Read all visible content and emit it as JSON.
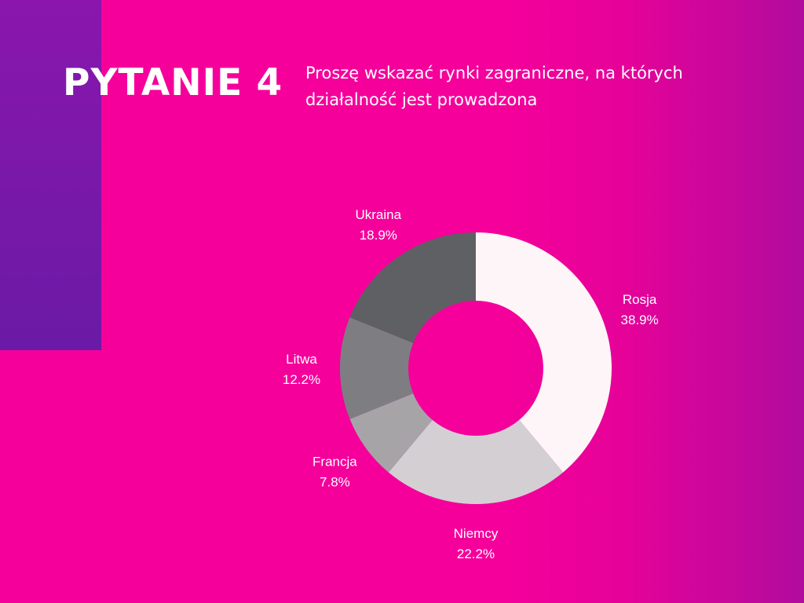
{
  "header": {
    "title": "PYTANIE 4",
    "question": "Proszę wskazać rynki zagraniczne, na których działalność jest prowadzona"
  },
  "chart_data": {
    "type": "pie",
    "donut": true,
    "categories": [
      "Rosja",
      "Niemcy",
      "Francja",
      "Litwa",
      "Ukraina"
    ],
    "values": [
      38.9,
      22.2,
      7.8,
      12.2,
      18.9
    ],
    "value_labels": [
      "38.9%",
      "22.2%",
      "7.8%",
      "12.2%",
      "18.9%"
    ],
    "colors": [
      "#fdf5f7",
      "#d4cfd3",
      "#a7a4a8",
      "#7e7e82",
      "#5f6064"
    ],
    "title": "",
    "legend": "none"
  },
  "colors": {
    "background": "#f5009b",
    "side_bar": "#7a18aa",
    "text": "#ffffff"
  }
}
